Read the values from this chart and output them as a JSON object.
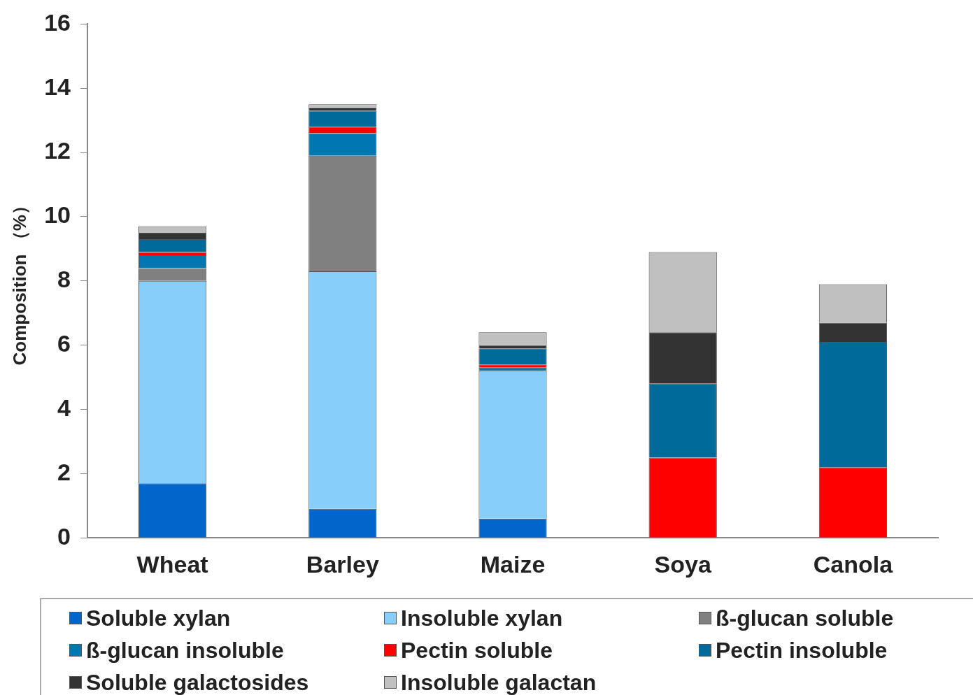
{
  "chart_data": {
    "type": "bar",
    "stacked": true,
    "ylabel": "Composition （%）",
    "categories": [
      "Wheat",
      "Barley",
      "Maize",
      "Soya",
      "Canola"
    ],
    "ylim": [
      0,
      16
    ],
    "yticks": [
      0,
      2,
      4,
      6,
      8,
      10,
      12,
      14,
      16
    ],
    "grid": false,
    "legend": "bottom",
    "series": [
      {
        "name": "Soluble xylan",
        "color": "#0066cc",
        "values": [
          1.7,
          0.9,
          0.6,
          0,
          0
        ]
      },
      {
        "name": "Insoluble xylan",
        "color": "#87cefa",
        "values": [
          6.3,
          7.4,
          4.6,
          0,
          0
        ]
      },
      {
        "name": "ß-glucan soluble",
        "color": "#808080",
        "values": [
          0.4,
          3.6,
          0,
          0,
          0
        ]
      },
      {
        "name": "ß-glucan insoluble",
        "color": "#0077b0",
        "values": [
          0.4,
          0.7,
          0.1,
          0,
          0
        ]
      },
      {
        "name": "Pectin soluble",
        "color": "#ff0000",
        "values": [
          0.1,
          0.2,
          0.1,
          2.5,
          2.2
        ]
      },
      {
        "name": "Pectin insoluble",
        "color": "#006b9a",
        "values": [
          0.4,
          0.5,
          0.5,
          2.3,
          3.9
        ]
      },
      {
        "name": "Soluble galactosides",
        "color": "#333333",
        "values": [
          0.2,
          0.1,
          0.1,
          1.6,
          0.6
        ]
      },
      {
        "name": "Insoluble galactan",
        "color": "#c0c0c0",
        "values": [
          0.2,
          0.1,
          0.4,
          2.5,
          1.2
        ]
      }
    ]
  }
}
